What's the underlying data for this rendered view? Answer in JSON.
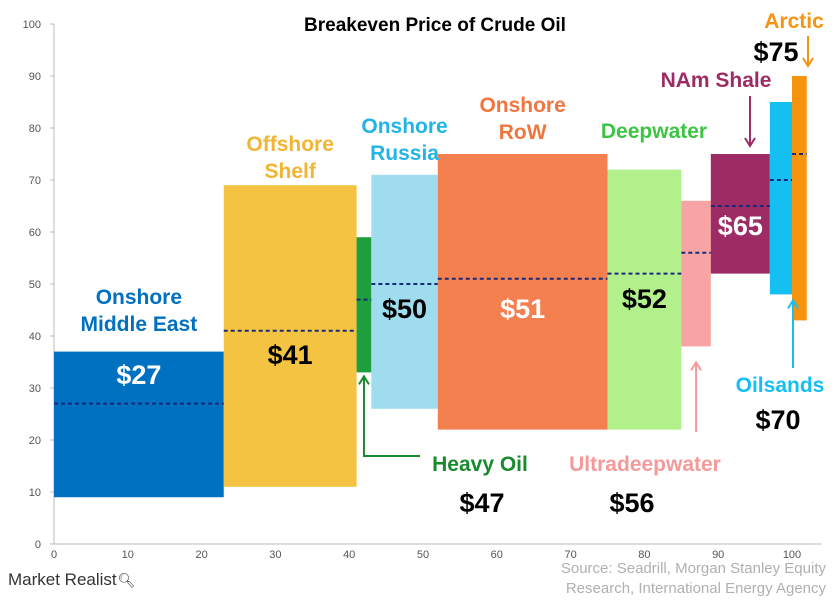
{
  "chart_data": {
    "type": "variable-width bar",
    "title": "Breakeven Price of Crude Oil",
    "xlim": [
      0,
      100
    ],
    "ylim": [
      0,
      100
    ],
    "x_ticks": [
      "0",
      "10",
      "20",
      "30",
      "40",
      "50",
      "60",
      "70",
      "80",
      "90",
      "100"
    ],
    "y_ticks": [
      "0",
      "10",
      "20",
      "30",
      "40",
      "50",
      "60",
      "70",
      "80",
      "90",
      "100"
    ],
    "grid": false,
    "segments": [
      {
        "name": "Onshore Middle East",
        "label_lines": [
          "Onshore",
          "Middle East"
        ],
        "price_label": "$27",
        "x_start": 0,
        "x_end": 23,
        "low": 9,
        "high": 37,
        "breakeven": 27,
        "color": "#0070c0",
        "label_color": "#0070c0",
        "price_color": "#ffffff"
      },
      {
        "name": "Offshore Shelf",
        "label_lines": [
          "Offshore",
          "Shelf"
        ],
        "price_label": "$41",
        "x_start": 23,
        "x_end": 41,
        "low": 11,
        "high": 69,
        "breakeven": 41,
        "color": "#f5c342",
        "label_color": "#f2b533",
        "price_color": "#000000"
      },
      {
        "name": "Heavy Oil",
        "label_lines": [
          "Heavy Oil"
        ],
        "price_label": "$47",
        "x_start": 41,
        "x_end": 43,
        "low": 33,
        "high": 59,
        "breakeven": 47,
        "color": "#1e9e3c",
        "label_color": "#1a8a2e",
        "price_color": "#000000"
      },
      {
        "name": "Onshore Russia",
        "label_lines": [
          "Onshore",
          "Russia"
        ],
        "price_label": "$50",
        "x_start": 43,
        "x_end": 52,
        "low": 26,
        "high": 71,
        "breakeven": 50,
        "color": "#9fdcee",
        "label_color": "#22b4e6",
        "price_color": "#000000"
      },
      {
        "name": "Onshore RoW",
        "label_lines": [
          "Onshore",
          "RoW"
        ],
        "price_label": "$51",
        "x_start": 52,
        "x_end": 75,
        "low": 22,
        "high": 75,
        "breakeven": 51,
        "color": "#f47f4f",
        "label_color": "#f0763f",
        "price_color": "#ffffff"
      },
      {
        "name": "Deepwater",
        "label_lines": [
          "Deepwater"
        ],
        "price_label": "$52",
        "x_start": 75,
        "x_end": 85,
        "low": 22,
        "high": 72,
        "breakeven": 52,
        "color": "#b2f08c",
        "label_color": "#3ec445",
        "price_color": "#000000"
      },
      {
        "name": "Ultradeepwater",
        "label_lines": [
          "Ultradeepwater"
        ],
        "price_label": "$56",
        "x_start": 85,
        "x_end": 89,
        "low": 38,
        "high": 66,
        "breakeven": 56,
        "color": "#f9a4a4",
        "label_color": "#f59a9a",
        "price_color": "#000000"
      },
      {
        "name": "NAm Shale",
        "label_lines": [
          "NAm Shale"
        ],
        "price_label": "$65",
        "x_start": 89,
        "x_end": 97,
        "low": 52,
        "high": 75,
        "breakeven": 65,
        "color": "#9c2c63",
        "label_color": "#9c2c63",
        "price_color": "#ffffff"
      },
      {
        "name": "Oilsands",
        "label_lines": [
          "Oilsands"
        ],
        "price_label": "$70",
        "x_start": 97,
        "x_end": 100,
        "low": 48,
        "high": 85,
        "breakeven": 70,
        "color": "#16bff2",
        "label_color": "#16bff2",
        "price_color": "#000000"
      },
      {
        "name": "Arctic",
        "label_lines": [
          "Arctic"
        ],
        "price_label": "$75",
        "x_start": 100,
        "x_end": 102,
        "low": 43,
        "high": 90,
        "breakeven": 75,
        "color": "#f7940f",
        "label_color": "#f7940f",
        "price_color": "#000000"
      }
    ]
  },
  "source_lines": [
    "Source: Seadrill, Morgan Stanley Equity",
    "Research, International Energy Agency"
  ],
  "brand": {
    "name": "Market Realist",
    "icon": "magnifier-icon"
  }
}
